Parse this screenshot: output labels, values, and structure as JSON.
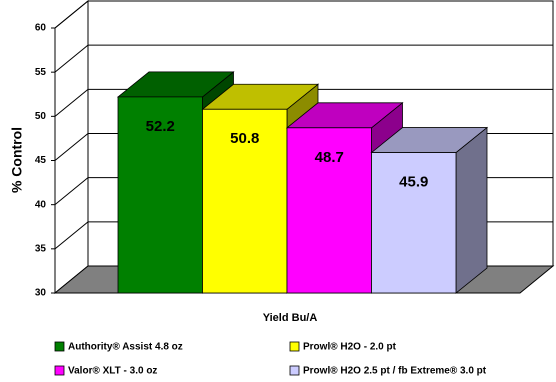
{
  "chart_data": {
    "type": "bar",
    "y_label": "% Control",
    "categories": [
      "Yield Bu/A"
    ],
    "series": [
      {
        "name": "Authority® Assist 4.8 oz",
        "color": "#008000",
        "values": [
          52.2
        ]
      },
      {
        "name": "Prowl® H2O - 2.0 pt",
        "color": "#ffff00",
        "values": [
          50.8
        ]
      },
      {
        "name": "Valor® XLT - 3.0 oz",
        "color": "#ff00ff",
        "values": [
          48.7
        ]
      },
      {
        "name": "Prowl® H2O 2.5 pt / fb Extreme® 3.0 pt",
        "color": "#ccccff",
        "values": [
          45.9
        ]
      }
    ],
    "ylim": [
      30,
      60
    ],
    "yticks": [
      30,
      35,
      40,
      45,
      50,
      55,
      60
    ],
    "grid": true
  }
}
